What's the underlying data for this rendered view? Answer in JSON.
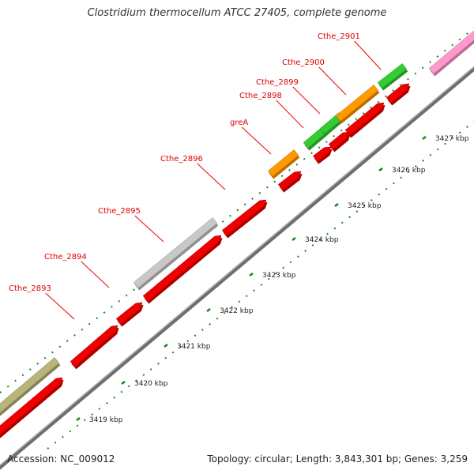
{
  "title": "Clostridium thermocellum ATCC 27405, complete genome",
  "footer": {
    "accession": "Accession: NC_009012",
    "summary": "Topology: circular; Length: 3,843,301 bp; Genes: 3,259"
  },
  "colors": {
    "backbone": "#888888",
    "dots": "#118811",
    "red": "#ee0000",
    "gray": "#c8c8c8",
    "olive": "#b8b47a",
    "orange": "#ff9900",
    "green": "#33cc33",
    "pink": "#ff99cc"
  },
  "ticks": [
    "3419 kbp",
    "3420 kbp",
    "3421 kbp",
    "3422 kbp",
    "3423 kbp",
    "3424 kbp",
    "3425 kbp",
    "3426 kbp",
    "3427 kbp"
  ],
  "gene_labels": [
    "Cthe_2893",
    "Cthe_2894",
    "Cthe_2895",
    "Cthe_2896",
    "greA",
    "Cthe_2898",
    "Cthe_2899",
    "Cthe_2900",
    "Cthe_2901"
  ]
}
